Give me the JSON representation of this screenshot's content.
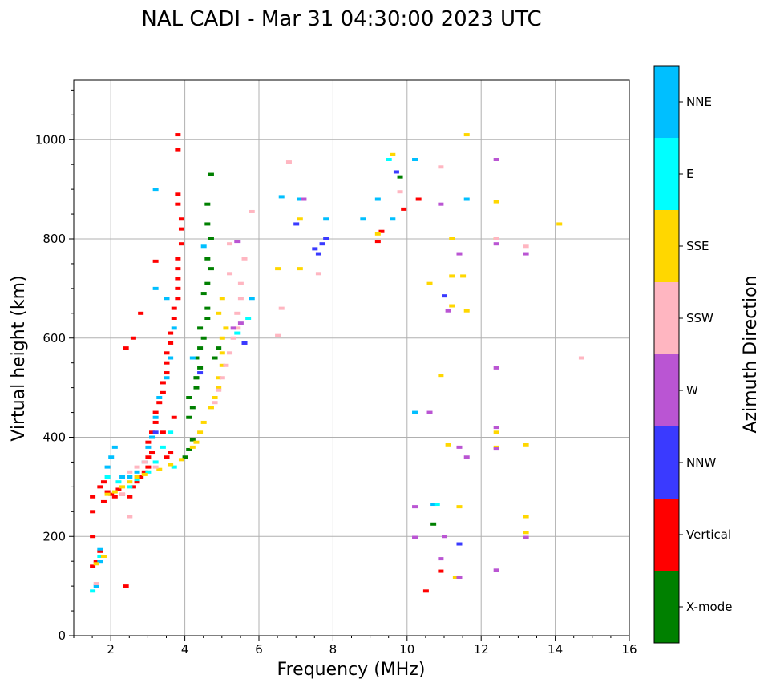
{
  "chart_data": {
    "type": "scatter",
    "title": "NAL CADI - Mar 31 04:30:00 2023 UTC",
    "xlabel": "Frequency (MHz)",
    "ylabel": "Virtual height (km)",
    "xlim": [
      1,
      16
    ],
    "ylim": [
      0,
      1120
    ],
    "xticks": [
      2,
      4,
      6,
      8,
      10,
      12,
      14,
      16
    ],
    "yticks": [
      0,
      200,
      400,
      600,
      800,
      1000
    ],
    "grid": true,
    "colorbar": {
      "title": "Azimuth Direction",
      "categories": [
        {
          "name": "NNE",
          "color": "#00bfff"
        },
        {
          "name": "E",
          "color": "#00ffff"
        },
        {
          "name": "SSE",
          "color": "#ffd700"
        },
        {
          "name": "SSW",
          "color": "#ffb6c1"
        },
        {
          "name": "W",
          "color": "#ba55d3"
        },
        {
          "name": "NNW",
          "color": "#3a3aff"
        },
        {
          "name": "Vertical",
          "color": "#ff0000"
        },
        {
          "name": "X-mode",
          "color": "#008000"
        }
      ]
    },
    "series": [
      {
        "name": "Vertical",
        "points": [
          [
            1.5,
            140
          ],
          [
            1.6,
            150
          ],
          [
            1.7,
            170
          ],
          [
            1.5,
            200
          ],
          [
            1.5,
            250
          ],
          [
            1.5,
            280
          ],
          [
            1.8,
            270
          ],
          [
            1.7,
            300
          ],
          [
            1.8,
            310
          ],
          [
            1.9,
            290
          ],
          [
            2.0,
            285
          ],
          [
            2.1,
            280
          ],
          [
            2.2,
            295
          ],
          [
            2.3,
            285
          ],
          [
            2.5,
            280
          ],
          [
            2.6,
            300
          ],
          [
            2.7,
            310
          ],
          [
            2.8,
            320
          ],
          [
            2.9,
            330
          ],
          [
            3.0,
            340
          ],
          [
            3.0,
            360
          ],
          [
            3.1,
            370
          ],
          [
            3.0,
            390
          ],
          [
            3.1,
            410
          ],
          [
            3.2,
            430
          ],
          [
            3.2,
            450
          ],
          [
            3.3,
            470
          ],
          [
            3.4,
            490
          ],
          [
            3.4,
            510
          ],
          [
            3.5,
            530
          ],
          [
            3.5,
            550
          ],
          [
            3.5,
            570
          ],
          [
            3.6,
            590
          ],
          [
            3.6,
            610
          ],
          [
            3.7,
            640
          ],
          [
            3.7,
            660
          ],
          [
            3.8,
            680
          ],
          [
            3.8,
            700
          ],
          [
            3.8,
            720
          ],
          [
            3.8,
            740
          ],
          [
            3.8,
            760
          ],
          [
            3.9,
            790
          ],
          [
            3.9,
            820
          ],
          [
            3.9,
            840
          ],
          [
            3.8,
            870
          ],
          [
            3.8,
            890
          ],
          [
            3.8,
            980
          ],
          [
            3.8,
            1010
          ],
          [
            3.5,
            360
          ],
          [
            3.6,
            370
          ],
          [
            2.4,
            580
          ],
          [
            2.6,
            600
          ],
          [
            2.8,
            650
          ],
          [
            3.2,
            755
          ],
          [
            3.7,
            440
          ],
          [
            3.4,
            410
          ],
          [
            2.4,
            100
          ],
          [
            9.2,
            795
          ],
          [
            9.3,
            815
          ],
          [
            9.9,
            860
          ],
          [
            10.3,
            880
          ],
          [
            10.5,
            90
          ],
          [
            10.9,
            130
          ]
        ]
      },
      {
        "name": "X-mode",
        "points": [
          [
            4.0,
            360
          ],
          [
            4.1,
            375
          ],
          [
            4.2,
            395
          ],
          [
            4.1,
            440
          ],
          [
            4.2,
            460
          ],
          [
            4.1,
            480
          ],
          [
            4.3,
            500
          ],
          [
            4.3,
            520
          ],
          [
            4.4,
            540
          ],
          [
            4.3,
            560
          ],
          [
            4.4,
            580
          ],
          [
            4.5,
            600
          ],
          [
            4.4,
            620
          ],
          [
            4.6,
            640
          ],
          [
            4.6,
            660
          ],
          [
            4.5,
            690
          ],
          [
            4.6,
            710
          ],
          [
            4.7,
            740
          ],
          [
            4.6,
            760
          ],
          [
            4.7,
            800
          ],
          [
            4.6,
            830
          ],
          [
            4.6,
            870
          ],
          [
            4.7,
            930
          ],
          [
            4.3,
            520
          ],
          [
            4.8,
            560
          ],
          [
            4.9,
            580
          ],
          [
            9.8,
            925
          ],
          [
            10.7,
            225
          ]
        ]
      },
      {
        "name": "NNE",
        "points": [
          [
            1.6,
            100
          ],
          [
            1.7,
            150
          ],
          [
            1.7,
            175
          ],
          [
            1.9,
            340
          ],
          [
            2.0,
            360
          ],
          [
            2.1,
            380
          ],
          [
            2.3,
            320
          ],
          [
            2.5,
            320
          ],
          [
            2.7,
            330
          ],
          [
            2.9,
            350
          ],
          [
            3.0,
            380
          ],
          [
            3.1,
            400
          ],
          [
            3.2,
            440
          ],
          [
            3.3,
            480
          ],
          [
            3.5,
            520
          ],
          [
            3.6,
            560
          ],
          [
            3.7,
            620
          ],
          [
            3.5,
            680
          ],
          [
            3.2,
            700
          ],
          [
            3.2,
            900
          ],
          [
            6.6,
            885
          ],
          [
            7.1,
            880
          ],
          [
            7.8,
            840
          ],
          [
            8.8,
            840
          ],
          [
            9.2,
            880
          ],
          [
            9.6,
            840
          ],
          [
            10.2,
            960
          ],
          [
            10.2,
            450
          ],
          [
            10.7,
            265
          ],
          [
            11.6,
            880
          ],
          [
            4.2,
            560
          ],
          [
            4.5,
            785
          ],
          [
            5.8,
            680
          ]
        ]
      },
      {
        "name": "E",
        "points": [
          [
            1.5,
            90
          ],
          [
            1.7,
            160
          ],
          [
            1.9,
            320
          ],
          [
            2.2,
            310
          ],
          [
            2.5,
            300
          ],
          [
            2.7,
            315
          ],
          [
            3.0,
            330
          ],
          [
            3.2,
            350
          ],
          [
            3.4,
            380
          ],
          [
            3.6,
            410
          ],
          [
            3.7,
            340
          ],
          [
            5.7,
            640
          ],
          [
            5.4,
            610
          ],
          [
            9.5,
            960
          ],
          [
            10.8,
            265
          ]
        ]
      },
      {
        "name": "SSE",
        "points": [
          [
            1.6,
            145
          ],
          [
            1.8,
            160
          ],
          [
            1.9,
            285
          ],
          [
            2.1,
            290
          ],
          [
            2.3,
            300
          ],
          [
            2.5,
            310
          ],
          [
            2.7,
            320
          ],
          [
            2.9,
            325
          ],
          [
            3.3,
            335
          ],
          [
            3.6,
            345
          ],
          [
            3.9,
            355
          ],
          [
            4.2,
            380
          ],
          [
            4.3,
            390
          ],
          [
            4.4,
            410
          ],
          [
            4.5,
            430
          ],
          [
            4.7,
            460
          ],
          [
            4.8,
            480
          ],
          [
            4.9,
            500
          ],
          [
            4.9,
            520
          ],
          [
            5.0,
            545
          ],
          [
            5.0,
            570
          ],
          [
            5.0,
            600
          ],
          [
            5.1,
            620
          ],
          [
            4.9,
            650
          ],
          [
            5.0,
            680
          ],
          [
            6.5,
            740
          ],
          [
            7.1,
            740
          ],
          [
            7.1,
            840
          ],
          [
            9.2,
            810
          ],
          [
            9.6,
            970
          ],
          [
            10.9,
            525
          ],
          [
            10.6,
            710
          ],
          [
            11.2,
            800
          ],
          [
            11.2,
            725
          ],
          [
            11.2,
            665
          ],
          [
            11.1,
            385
          ],
          [
            11.5,
            725
          ],
          [
            11.6,
            655
          ],
          [
            11.6,
            1010
          ],
          [
            11.4,
            260
          ],
          [
            11.3,
            118
          ],
          [
            12.4,
            410
          ],
          [
            12.4,
            380
          ],
          [
            12.4,
            800
          ],
          [
            12.4,
            875
          ],
          [
            13.2,
            385
          ],
          [
            13.2,
            240
          ],
          [
            13.2,
            208
          ],
          [
            14.1,
            830
          ]
        ]
      },
      {
        "name": "SSW",
        "points": [
          [
            1.6,
            105
          ],
          [
            2.3,
            285
          ],
          [
            2.5,
            330
          ],
          [
            2.7,
            340
          ],
          [
            2.9,
            350
          ],
          [
            3.2,
            340
          ],
          [
            4.8,
            470
          ],
          [
            4.9,
            495
          ],
          [
            5.0,
            520
          ],
          [
            5.1,
            545
          ],
          [
            5.2,
            570
          ],
          [
            5.3,
            600
          ],
          [
            5.4,
            620
          ],
          [
            5.4,
            650
          ],
          [
            5.5,
            680
          ],
          [
            5.5,
            710
          ],
          [
            5.2,
            730
          ],
          [
            5.6,
            760
          ],
          [
            5.2,
            790
          ],
          [
            5.8,
            855
          ],
          [
            6.5,
            605
          ],
          [
            6.6,
            660
          ],
          [
            6.8,
            955
          ],
          [
            7.6,
            730
          ],
          [
            9.8,
            895
          ],
          [
            10.9,
            945
          ],
          [
            12.4,
            800
          ],
          [
            13.2,
            785
          ],
          [
            14.7,
            560
          ],
          [
            2.5,
            240
          ]
        ]
      },
      {
        "name": "W",
        "points": [
          [
            5.6,
            590
          ],
          [
            5.4,
            795
          ],
          [
            5.5,
            630
          ],
          [
            7.2,
            880
          ],
          [
            10.2,
            260
          ],
          [
            10.2,
            198
          ],
          [
            10.6,
            450
          ],
          [
            10.9,
            155
          ],
          [
            11.0,
            200
          ],
          [
            10.9,
            870
          ],
          [
            11.1,
            655
          ],
          [
            11.4,
            380
          ],
          [
            11.4,
            118
          ],
          [
            11.6,
            360
          ],
          [
            11.4,
            770
          ],
          [
            12.4,
            960
          ],
          [
            12.4,
            540
          ],
          [
            12.4,
            420
          ],
          [
            12.4,
            378
          ],
          [
            12.4,
            132
          ],
          [
            12.4,
            790
          ],
          [
            13.2,
            770
          ],
          [
            13.2,
            198
          ],
          [
            5.3,
            620
          ]
        ]
      },
      {
        "name": "NNW",
        "points": [
          [
            4.4,
            530
          ],
          [
            5.6,
            590
          ],
          [
            7.0,
            830
          ],
          [
            7.6,
            770
          ],
          [
            7.7,
            790
          ],
          [
            7.8,
            800
          ],
          [
            7.5,
            780
          ],
          [
            11.0,
            685
          ],
          [
            11.4,
            185
          ],
          [
            9.7,
            935
          ],
          [
            3.2,
            410
          ]
        ]
      }
    ]
  }
}
